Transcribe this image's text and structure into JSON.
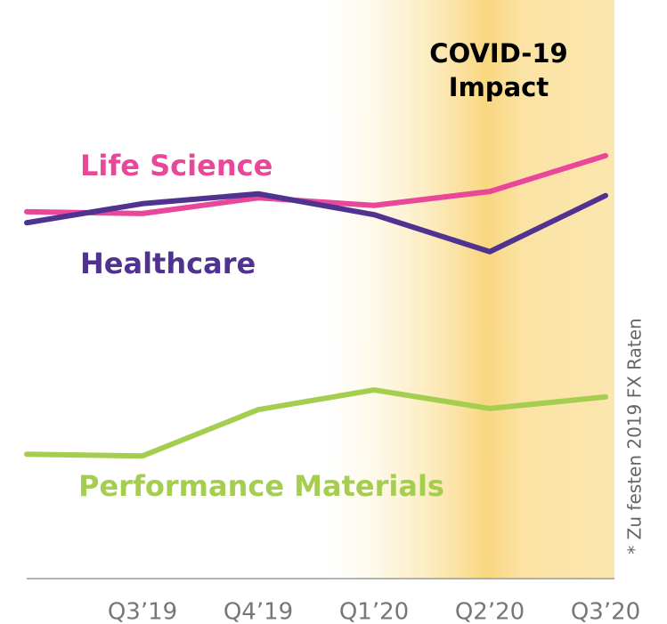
{
  "chart_data": {
    "type": "line",
    "categories": [
      null,
      "Q3’19",
      "Q4’19",
      "Q1’20",
      "Q2’20",
      "Q3’20"
    ],
    "series": [
      {
        "name": "Life Science",
        "color": "#e8479a",
        "values": [
          63.4,
          63.1,
          65.8,
          64.5,
          66.9,
          73.1
        ]
      },
      {
        "name": "Healthcare",
        "color": "#503291",
        "values": [
          61.5,
          64.8,
          66.5,
          62.9,
          56.5,
          66.2
        ]
      },
      {
        "name": "Performance Materials",
        "color": "#a5cd50",
        "values": [
          21.5,
          21.2,
          29.2,
          32.6,
          29.4,
          31.4
        ]
      }
    ],
    "ylim": [
      0,
      100
    ],
    "annotation": [
      "COVID-19",
      "Impact"
    ],
    "footnote": "* Zu festen 2019 FX Raten"
  }
}
